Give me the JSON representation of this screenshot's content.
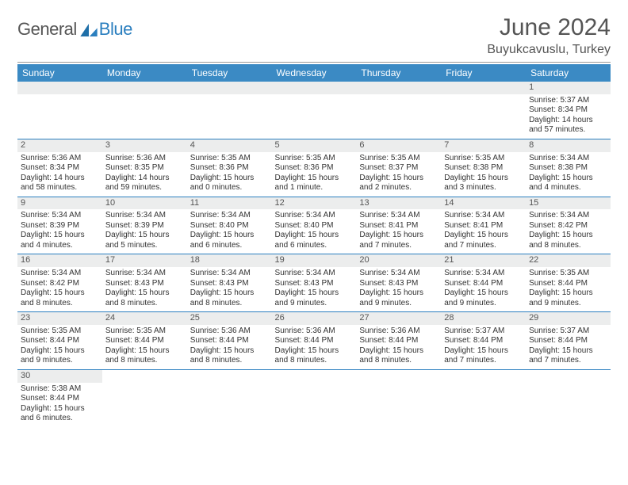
{
  "logo": {
    "part1": "General",
    "part2": "Blue"
  },
  "title": "June 2024",
  "location": "Buyukcavuslu, Turkey",
  "colors": {
    "header_bg": "#3b8ac4",
    "border": "#2b7fbf",
    "daynum_bg": "#eceded",
    "text": "#333333",
    "title_text": "#555555"
  },
  "daysOfWeek": [
    "Sunday",
    "Monday",
    "Tuesday",
    "Wednesday",
    "Thursday",
    "Friday",
    "Saturday"
  ],
  "startOffset": 6,
  "cells": [
    {
      "n": "1",
      "sr": "5:37 AM",
      "ss": "8:34 PM",
      "dl": "14 hours and 57 minutes."
    },
    {
      "n": "2",
      "sr": "5:36 AM",
      "ss": "8:34 PM",
      "dl": "14 hours and 58 minutes."
    },
    {
      "n": "3",
      "sr": "5:36 AM",
      "ss": "8:35 PM",
      "dl": "14 hours and 59 minutes."
    },
    {
      "n": "4",
      "sr": "5:35 AM",
      "ss": "8:36 PM",
      "dl": "15 hours and 0 minutes."
    },
    {
      "n": "5",
      "sr": "5:35 AM",
      "ss": "8:36 PM",
      "dl": "15 hours and 1 minute."
    },
    {
      "n": "6",
      "sr": "5:35 AM",
      "ss": "8:37 PM",
      "dl": "15 hours and 2 minutes."
    },
    {
      "n": "7",
      "sr": "5:35 AM",
      "ss": "8:38 PM",
      "dl": "15 hours and 3 minutes."
    },
    {
      "n": "8",
      "sr": "5:34 AM",
      "ss": "8:38 PM",
      "dl": "15 hours and 4 minutes."
    },
    {
      "n": "9",
      "sr": "5:34 AM",
      "ss": "8:39 PM",
      "dl": "15 hours and 4 minutes."
    },
    {
      "n": "10",
      "sr": "5:34 AM",
      "ss": "8:39 PM",
      "dl": "15 hours and 5 minutes."
    },
    {
      "n": "11",
      "sr": "5:34 AM",
      "ss": "8:40 PM",
      "dl": "15 hours and 6 minutes."
    },
    {
      "n": "12",
      "sr": "5:34 AM",
      "ss": "8:40 PM",
      "dl": "15 hours and 6 minutes."
    },
    {
      "n": "13",
      "sr": "5:34 AM",
      "ss": "8:41 PM",
      "dl": "15 hours and 7 minutes."
    },
    {
      "n": "14",
      "sr": "5:34 AM",
      "ss": "8:41 PM",
      "dl": "15 hours and 7 minutes."
    },
    {
      "n": "15",
      "sr": "5:34 AM",
      "ss": "8:42 PM",
      "dl": "15 hours and 8 minutes."
    },
    {
      "n": "16",
      "sr": "5:34 AM",
      "ss": "8:42 PM",
      "dl": "15 hours and 8 minutes."
    },
    {
      "n": "17",
      "sr": "5:34 AM",
      "ss": "8:43 PM",
      "dl": "15 hours and 8 minutes."
    },
    {
      "n": "18",
      "sr": "5:34 AM",
      "ss": "8:43 PM",
      "dl": "15 hours and 8 minutes."
    },
    {
      "n": "19",
      "sr": "5:34 AM",
      "ss": "8:43 PM",
      "dl": "15 hours and 9 minutes."
    },
    {
      "n": "20",
      "sr": "5:34 AM",
      "ss": "8:43 PM",
      "dl": "15 hours and 9 minutes."
    },
    {
      "n": "21",
      "sr": "5:34 AM",
      "ss": "8:44 PM",
      "dl": "15 hours and 9 minutes."
    },
    {
      "n": "22",
      "sr": "5:35 AM",
      "ss": "8:44 PM",
      "dl": "15 hours and 9 minutes."
    },
    {
      "n": "23",
      "sr": "5:35 AM",
      "ss": "8:44 PM",
      "dl": "15 hours and 9 minutes."
    },
    {
      "n": "24",
      "sr": "5:35 AM",
      "ss": "8:44 PM",
      "dl": "15 hours and 8 minutes."
    },
    {
      "n": "25",
      "sr": "5:36 AM",
      "ss": "8:44 PM",
      "dl": "15 hours and 8 minutes."
    },
    {
      "n": "26",
      "sr": "5:36 AM",
      "ss": "8:44 PM",
      "dl": "15 hours and 8 minutes."
    },
    {
      "n": "27",
      "sr": "5:36 AM",
      "ss": "8:44 PM",
      "dl": "15 hours and 8 minutes."
    },
    {
      "n": "28",
      "sr": "5:37 AM",
      "ss": "8:44 PM",
      "dl": "15 hours and 7 minutes."
    },
    {
      "n": "29",
      "sr": "5:37 AM",
      "ss": "8:44 PM",
      "dl": "15 hours and 7 minutes."
    },
    {
      "n": "30",
      "sr": "5:38 AM",
      "ss": "8:44 PM",
      "dl": "15 hours and 6 minutes."
    }
  ],
  "labels": {
    "sunrise": "Sunrise:",
    "sunset": "Sunset:",
    "daylight": "Daylight:"
  }
}
